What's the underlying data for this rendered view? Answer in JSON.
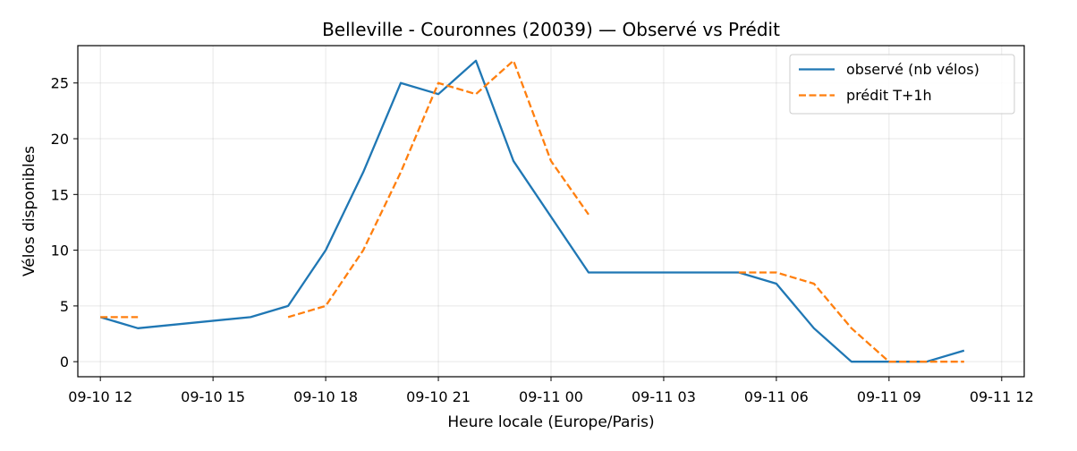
{
  "chart_data": {
    "type": "line",
    "title": "Belleville - Couronnes (20039) — Observé vs Prédit",
    "xlabel": "Heure locale (Europe/Paris)",
    "ylabel": "Vélos disponibles",
    "xlim": [
      "2025-09-10 11:24",
      "2025-09-11 12:36"
    ],
    "ylim": [
      -1.35,
      28.35
    ],
    "grid": true,
    "legend_position": "top-right",
    "x_ticks": [
      {
        "t": "2025-09-10 12:00",
        "label": "09-10 12"
      },
      {
        "t": "2025-09-10 15:00",
        "label": "09-10 15"
      },
      {
        "t": "2025-09-10 18:00",
        "label": "09-10 18"
      },
      {
        "t": "2025-09-10 21:00",
        "label": "09-10 21"
      },
      {
        "t": "2025-09-11 00:00",
        "label": "09-11 00"
      },
      {
        "t": "2025-09-11 03:00",
        "label": "09-11 03"
      },
      {
        "t": "2025-09-11 06:00",
        "label": "09-11 06"
      },
      {
        "t": "2025-09-11 09:00",
        "label": "09-11 09"
      },
      {
        "t": "2025-09-11 12:00",
        "label": "09-11 12"
      }
    ],
    "y_ticks": [
      0,
      5,
      10,
      15,
      20,
      25
    ],
    "series": [
      {
        "name": "observé (nb vélos)",
        "color": "#1f77b4",
        "style": "solid",
        "segments": [
          [
            [
              "2025-09-10 12:00",
              4
            ],
            [
              "2025-09-10 13:00",
              3
            ],
            [
              "2025-09-10 16:00",
              4
            ],
            [
              "2025-09-10 17:00",
              5
            ],
            [
              "2025-09-10 18:00",
              10
            ],
            [
              "2025-09-10 19:00",
              17
            ],
            [
              "2025-09-10 20:00",
              25
            ],
            [
              "2025-09-10 21:00",
              24
            ],
            [
              "2025-09-10 22:00",
              27
            ],
            [
              "2025-09-10 23:00",
              18
            ],
            [
              "2025-09-11 01:00",
              8
            ],
            [
              "2025-09-11 05:00",
              8
            ],
            [
              "2025-09-11 06:00",
              7
            ],
            [
              "2025-09-11 07:00",
              3
            ],
            [
              "2025-09-11 08:00",
              0
            ],
            [
              "2025-09-11 10:00",
              0
            ],
            [
              "2025-09-11 11:00",
              1
            ]
          ]
        ]
      },
      {
        "name": "prédit T+1h",
        "color": "#ff7f0e",
        "style": "dashed",
        "segments": [
          [
            [
              "2025-09-10 12:00",
              4
            ],
            [
              "2025-09-10 13:00",
              4
            ]
          ],
          [
            [
              "2025-09-10 17:00",
              4
            ],
            [
              "2025-09-10 18:00",
              5
            ],
            [
              "2025-09-10 19:00",
              10
            ],
            [
              "2025-09-10 20:00",
              17
            ],
            [
              "2025-09-10 21:00",
              25
            ],
            [
              "2025-09-10 22:00",
              24
            ],
            [
              "2025-09-10 23:00",
              27
            ],
            [
              "2025-09-11 00:00",
              18
            ],
            [
              "2025-09-11 01:00",
              13.2
            ]
          ],
          [
            [
              "2025-09-11 05:00",
              8
            ],
            [
              "2025-09-11 06:00",
              8
            ],
            [
              "2025-09-11 07:00",
              7
            ],
            [
              "2025-09-11 08:00",
              3
            ],
            [
              "2025-09-11 09:00",
              0
            ],
            [
              "2025-09-11 11:00",
              0
            ]
          ]
        ]
      }
    ]
  }
}
